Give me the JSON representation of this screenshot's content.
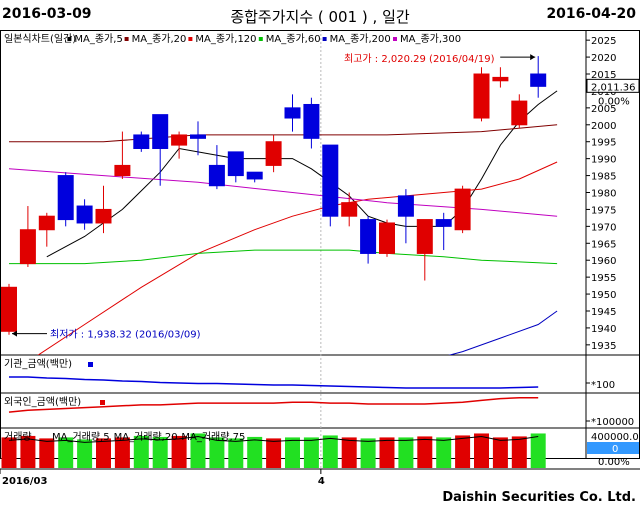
{
  "header": {
    "start_date": "2016-03-09",
    "end_date": "2016-04-20",
    "title": "종합주가지수 ( 001 ) , 일간"
  },
  "footer": {
    "brand": "Daishin Securities Co. Ltd."
  },
  "chart_data": {
    "type": "candlestick",
    "legend": [
      {
        "label": "일본식차트(일간)",
        "color": "#000000"
      },
      {
        "label": "MA_종가,5",
        "color": "#000000"
      },
      {
        "label": "MA_종가,20",
        "color": "#800000"
      },
      {
        "label": "MA_종가,120",
        "color": "#e00000"
      },
      {
        "label": "MA_종가,60",
        "color": "#00c000"
      },
      {
        "label": "MA_종가,200",
        "color": "#0000c0"
      },
      {
        "label": "MA_종가,300",
        "color": "#c000c0"
      }
    ],
    "colors": {
      "up": "#e00000",
      "down": "#0000dd"
    },
    "ylim": [
      1932,
      2028
    ],
    "yticks": [
      1935,
      1940,
      1945,
      1950,
      1955,
      1960,
      1965,
      1970,
      1975,
      1980,
      1985,
      1990,
      1995,
      2000,
      2005,
      2010,
      2015,
      2020,
      2025
    ],
    "candles": [
      {
        "o": 1939,
        "h": 1953,
        "l": 1938,
        "c": 1952
      },
      {
        "o": 1959,
        "h": 1976,
        "l": 1958,
        "c": 1969
      },
      {
        "o": 1969,
        "h": 1974,
        "l": 1964,
        "c": 1973
      },
      {
        "o": 1985,
        "h": 1986,
        "l": 1970,
        "c": 1972
      },
      {
        "o": 1976,
        "h": 1978,
        "l": 1969,
        "c": 1971
      },
      {
        "o": 1971,
        "h": 1982,
        "l": 1968,
        "c": 1975
      },
      {
        "o": 1985,
        "h": 1998,
        "l": 1984,
        "c": 1988
      },
      {
        "o": 1997,
        "h": 1998,
        "l": 1992,
        "c": 1993
      },
      {
        "o": 2003,
        "h": 2003,
        "l": 1982,
        "c": 1993
      },
      {
        "o": 1994,
        "h": 1998,
        "l": 1990,
        "c": 1997
      },
      {
        "o": 1997,
        "h": 2001,
        "l": 1991,
        "c": 1996
      },
      {
        "o": 1988,
        "h": 1994,
        "l": 1981,
        "c": 1982
      },
      {
        "o": 1992,
        "h": 1992,
        "l": 1983,
        "c": 1985
      },
      {
        "o": 1986,
        "h": 1986,
        "l": 1983,
        "c": 1984
      },
      {
        "o": 1988,
        "h": 1997,
        "l": 1986,
        "c": 1995
      },
      {
        "o": 2005,
        "h": 2009,
        "l": 1998,
        "c": 2002
      },
      {
        "o": 2006,
        "h": 2008,
        "l": 1993,
        "c": 1996
      },
      {
        "o": 1994,
        "h": 1994,
        "l": 1970,
        "c": 1973
      },
      {
        "o": 1973,
        "h": 1980,
        "l": 1970,
        "c": 1977
      },
      {
        "o": 1972,
        "h": 1973,
        "l": 1959,
        "c": 1962
      },
      {
        "o": 1962,
        "h": 1972,
        "l": 1961,
        "c": 1971
      },
      {
        "o": 1979,
        "h": 1981,
        "l": 1965,
        "c": 1973
      },
      {
        "o": 1962,
        "h": 1972,
        "l": 1954,
        "c": 1972
      },
      {
        "o": 1972,
        "h": 1974,
        "l": 1963,
        "c": 1970
      },
      {
        "o": 1969,
        "h": 1982,
        "l": 1968,
        "c": 1981
      },
      {
        "o": 2002,
        "h": 2017,
        "l": 2001,
        "c": 2015
      },
      {
        "o": 2013,
        "h": 2017,
        "l": 2011,
        "c": 2014
      },
      {
        "o": 2000,
        "h": 2009,
        "l": 1999,
        "c": 2007
      },
      {
        "o": 2015,
        "h": 2020.29,
        "l": 2008,
        "c": 2011.36
      }
    ],
    "ma": [
      {
        "name": "MA_종가,5",
        "color": "#000000",
        "points": [
          [
            2,
            1961
          ],
          [
            4,
            1967
          ],
          [
            6,
            1975
          ],
          [
            8,
            1986
          ],
          [
            9,
            1993
          ],
          [
            10,
            1992
          ],
          [
            12,
            1990
          ],
          [
            14,
            1990
          ],
          [
            15,
            1990
          ],
          [
            16,
            1987
          ],
          [
            17,
            1983
          ],
          [
            18,
            1979
          ],
          [
            19,
            1973
          ],
          [
            20,
            1971
          ],
          [
            21,
            1970
          ],
          [
            22,
            1970
          ],
          [
            23,
            1970
          ],
          [
            24,
            1975
          ],
          [
            25,
            1984
          ],
          [
            26,
            1994
          ],
          [
            27,
            2001
          ],
          [
            28,
            2006
          ],
          [
            29,
            2010
          ]
        ]
      },
      {
        "name": "MA_종가,20",
        "color": "#800000",
        "points": [
          [
            0,
            1995
          ],
          [
            5,
            1995
          ],
          [
            10,
            1997
          ],
          [
            15,
            1997
          ],
          [
            20,
            1997
          ],
          [
            25,
            1998
          ],
          [
            29,
            2000
          ]
        ]
      },
      {
        "name": "MA_종가,120",
        "color": "#e00000",
        "points": [
          [
            1,
            1930
          ],
          [
            4,
            1941
          ],
          [
            7,
            1952
          ],
          [
            10,
            1962
          ],
          [
            13,
            1969
          ],
          [
            15,
            1973
          ],
          [
            17,
            1976
          ],
          [
            19,
            1978
          ],
          [
            21,
            1979
          ],
          [
            23,
            1980
          ],
          [
            25,
            1981
          ],
          [
            27,
            1984
          ],
          [
            29,
            1989
          ]
        ]
      },
      {
        "name": "MA_종가,60",
        "color": "#00c000",
        "points": [
          [
            0,
            1959
          ],
          [
            4,
            1959
          ],
          [
            7,
            1960
          ],
          [
            10,
            1962
          ],
          [
            13,
            1963
          ],
          [
            15,
            1963
          ],
          [
            18,
            1963
          ],
          [
            20,
            1962
          ],
          [
            23,
            1961
          ],
          [
            25,
            1960
          ],
          [
            29,
            1959
          ]
        ]
      },
      {
        "name": "MA_종가,200",
        "color": "#0000c0",
        "points": [
          [
            22,
            1930
          ],
          [
            24,
            1933
          ],
          [
            26,
            1937
          ],
          [
            28,
            1941
          ],
          [
            29,
            1945
          ]
        ]
      },
      {
        "name": "MA_종가,300",
        "color": "#c000c0",
        "points": [
          [
            0,
            1987
          ],
          [
            5,
            1985
          ],
          [
            10,
            1983
          ],
          [
            15,
            1980
          ],
          [
            20,
            1977
          ],
          [
            25,
            1975
          ],
          [
            29,
            1973
          ]
        ]
      }
    ],
    "price_labels": {
      "last": "2,011.36",
      "change": "0.00%"
    },
    "annotations": [
      {
        "text": "최고가 : 2,020.29 (2016/04/19)",
        "color": "#e00000",
        "candle": 28,
        "value": 2020.29
      },
      {
        "text": "최저가 : 1,938.32 (2016/03/09)",
        "color": "#0000c0",
        "candle": 0,
        "value": 1938.32
      }
    ],
    "panels": [
      {
        "title": "기관_금액(백만)",
        "axis_label": "*100",
        "color": "#0000dd",
        "values": [
          -1.0,
          -1.0,
          -1.2,
          -1.3,
          -1.5,
          -1.6,
          -1.8,
          -1.9,
          -2.1,
          -2.2,
          -2.3,
          -2.3,
          -2.4,
          -2.5,
          -2.6,
          -2.6,
          -2.7,
          -2.8,
          -2.9,
          -3.0,
          -3.1,
          -3.2,
          -3.2,
          -3.2,
          -3.2,
          -3.2,
          -3.2,
          -3.1,
          -3.0
        ]
      },
      {
        "title": "외국인_금액(백만)",
        "axis_label": "*100000",
        "color": "#e00000",
        "values": [
          0.05,
          0.15,
          0.2,
          0.25,
          0.3,
          0.35,
          0.4,
          0.45,
          0.45,
          0.5,
          0.55,
          0.55,
          0.55,
          0.55,
          0.55,
          0.6,
          0.6,
          0.55,
          0.55,
          0.5,
          0.5,
          0.5,
          0.5,
          0.55,
          0.6,
          0.7,
          0.8,
          0.85,
          0.85
        ]
      },
      {
        "title": "거래량",
        "legend": [
          "MA_거래량,5",
          "MA_거래량,20",
          "MA_거래량,75"
        ],
        "axis_label": "400000.00",
        "extra_labels": [
          "0",
          "0.00%"
        ],
        "volumes": [
          0.62,
          0.65,
          0.6,
          0.62,
          0.58,
          0.6,
          0.62,
          0.65,
          0.63,
          0.65,
          0.7,
          0.62,
          0.6,
          0.63,
          0.6,
          0.62,
          0.62,
          0.66,
          0.62,
          0.6,
          0.62,
          0.62,
          0.64,
          0.62,
          0.66,
          0.7,
          0.62,
          0.64,
          0.7
        ]
      }
    ],
    "x_labels": [
      {
        "label": "2016/03",
        "candle": 0
      },
      {
        "label": "4",
        "candle": 17
      }
    ]
  }
}
